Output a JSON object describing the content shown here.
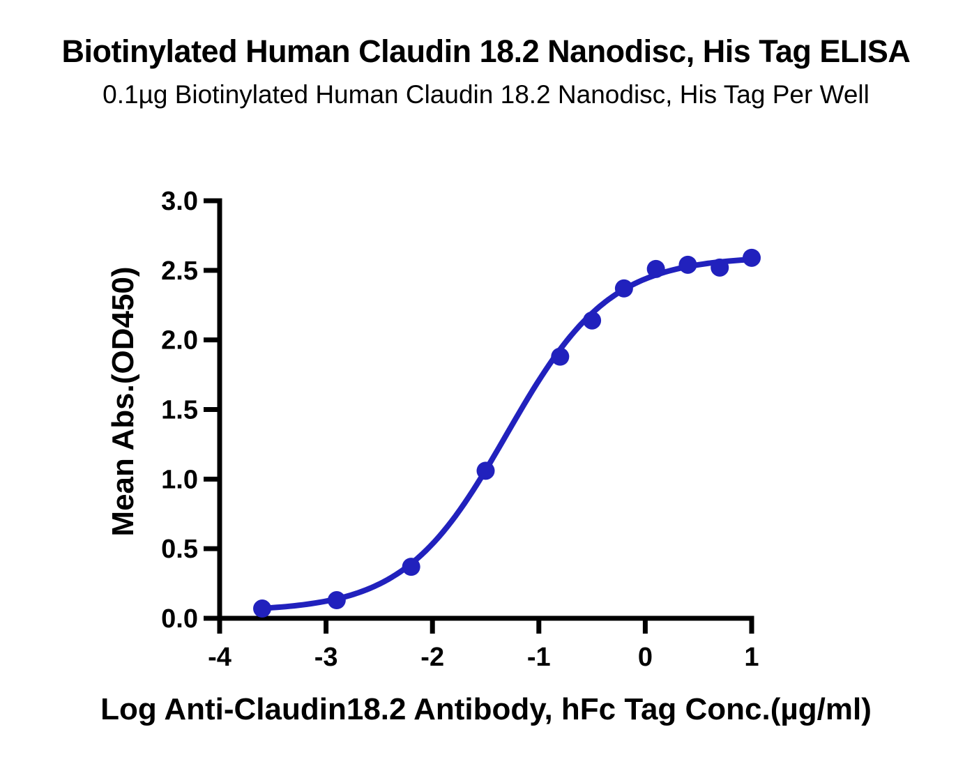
{
  "figure": {
    "title": "Biotinylated Human Claudin 18.2 Nanodisc, His Tag ELISA",
    "subtitle": "0.1µg Biotinylated Human Claudin 18.2 Nanodisc, His Tag Per Well"
  },
  "chart_data": {
    "type": "scatter",
    "title": "Biotinylated Human Claudin 18.2 Nanodisc, His Tag ELISA",
    "subtitle": "0.1µg Biotinylated Human Claudin 18.2 Nanodisc, His Tag Per Well",
    "xlabel": "Log Anti-Claudin18.2 Antibody, hFc Tag Conc.(µg/ml)",
    "ylabel": "Mean Abs.(OD450)",
    "xlim": [
      -4,
      1
    ],
    "ylim": [
      0,
      3
    ],
    "x_ticks": [
      -4,
      -3,
      -2,
      -1,
      0,
      1
    ],
    "y_ticks": [
      0.0,
      0.5,
      1.0,
      1.5,
      2.0,
      2.5,
      3.0
    ],
    "x_tick_labels": [
      "-4",
      "-3",
      "-2",
      "-1",
      "0",
      "1"
    ],
    "y_tick_labels": [
      "0.0",
      "0.5",
      "1.0",
      "1.5",
      "2.0",
      "2.5",
      "3.0"
    ],
    "grid": false,
    "series": [
      {
        "name": "Biotinylated Human Claudin 18.2 Nanodisc, His Tag",
        "marker": "circle",
        "color": "#2121BD",
        "x": [
          -3.6,
          -2.9,
          -2.2,
          -1.5,
          -0.8,
          -0.5,
          -0.2,
          0.1,
          0.4,
          0.7,
          1.0
        ],
        "y": [
          0.07,
          0.13,
          0.37,
          1.06,
          1.88,
          2.14,
          2.37,
          2.51,
          2.54,
          2.52,
          2.59
        ]
      }
    ],
    "fit_curve": {
      "model": "4PL-sigmoid",
      "bottom": 0.05,
      "top": 2.6,
      "logEC50": -1.3,
      "hillslope": 0.9,
      "x_range": [
        -3.62,
        1.0
      ],
      "color": "#2121BD"
    }
  },
  "colors": {
    "accent": "#2121BD",
    "axis": "#000000",
    "background": "#FFFFFF"
  }
}
